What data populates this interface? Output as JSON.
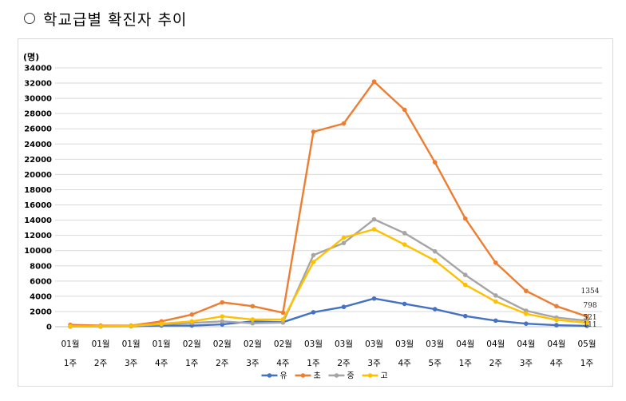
{
  "heading": {
    "text": "학교급별 확진자 추이"
  },
  "chart_data": {
    "type": "line",
    "ylabel": "(명)",
    "ylim": [
      0,
      34000
    ],
    "ytick_step": 2000,
    "grid": "horizontal",
    "legend_position": "bottom",
    "categories": [
      [
        "01월",
        "1주"
      ],
      [
        "01월",
        "2주"
      ],
      [
        "01월",
        "3주"
      ],
      [
        "01월",
        "4주"
      ],
      [
        "02월",
        "1주"
      ],
      [
        "02월",
        "2주"
      ],
      [
        "02월",
        "3주"
      ],
      [
        "02월",
        "4주"
      ],
      [
        "03월",
        "1주"
      ],
      [
        "03월",
        "2주"
      ],
      [
        "03월",
        "3주"
      ],
      [
        "03월",
        "4주"
      ],
      [
        "03월",
        "5주"
      ],
      [
        "04월",
        "1주"
      ],
      [
        "04월",
        "2주"
      ],
      [
        "04월",
        "3주"
      ],
      [
        "04월",
        "4주"
      ],
      [
        "05월",
        "1주"
      ]
    ],
    "series": [
      {
        "name": "유",
        "color": "#4472C4",
        "values": [
          30,
          30,
          60,
          150,
          150,
          300,
          700,
          600,
          1900,
          2600,
          3700,
          3000,
          2300,
          1400,
          800,
          400,
          200,
          111
        ]
      },
      {
        "name": "초",
        "color": "#ED7D31",
        "values": [
          250,
          150,
          150,
          700,
          1600,
          3200,
          2700,
          1850,
          25600,
          26700,
          32200,
          28500,
          21600,
          14200,
          8400,
          4700,
          2700,
          1354
        ]
      },
      {
        "name": "중",
        "color": "#A5A5A5",
        "values": [
          60,
          60,
          100,
          300,
          500,
          700,
          450,
          550,
          9400,
          11000,
          14100,
          12300,
          9900,
          6800,
          4100,
          2100,
          1200,
          798
        ]
      },
      {
        "name": "고",
        "color": "#FFC000",
        "values": [
          50,
          50,
          100,
          400,
          700,
          1350,
          950,
          950,
          8500,
          11700,
          12800,
          10800,
          8700,
          5500,
          3300,
          1700,
          900,
          521
        ]
      }
    ],
    "end_labels": [
      "1354",
      "798",
      "521",
      "111"
    ]
  }
}
